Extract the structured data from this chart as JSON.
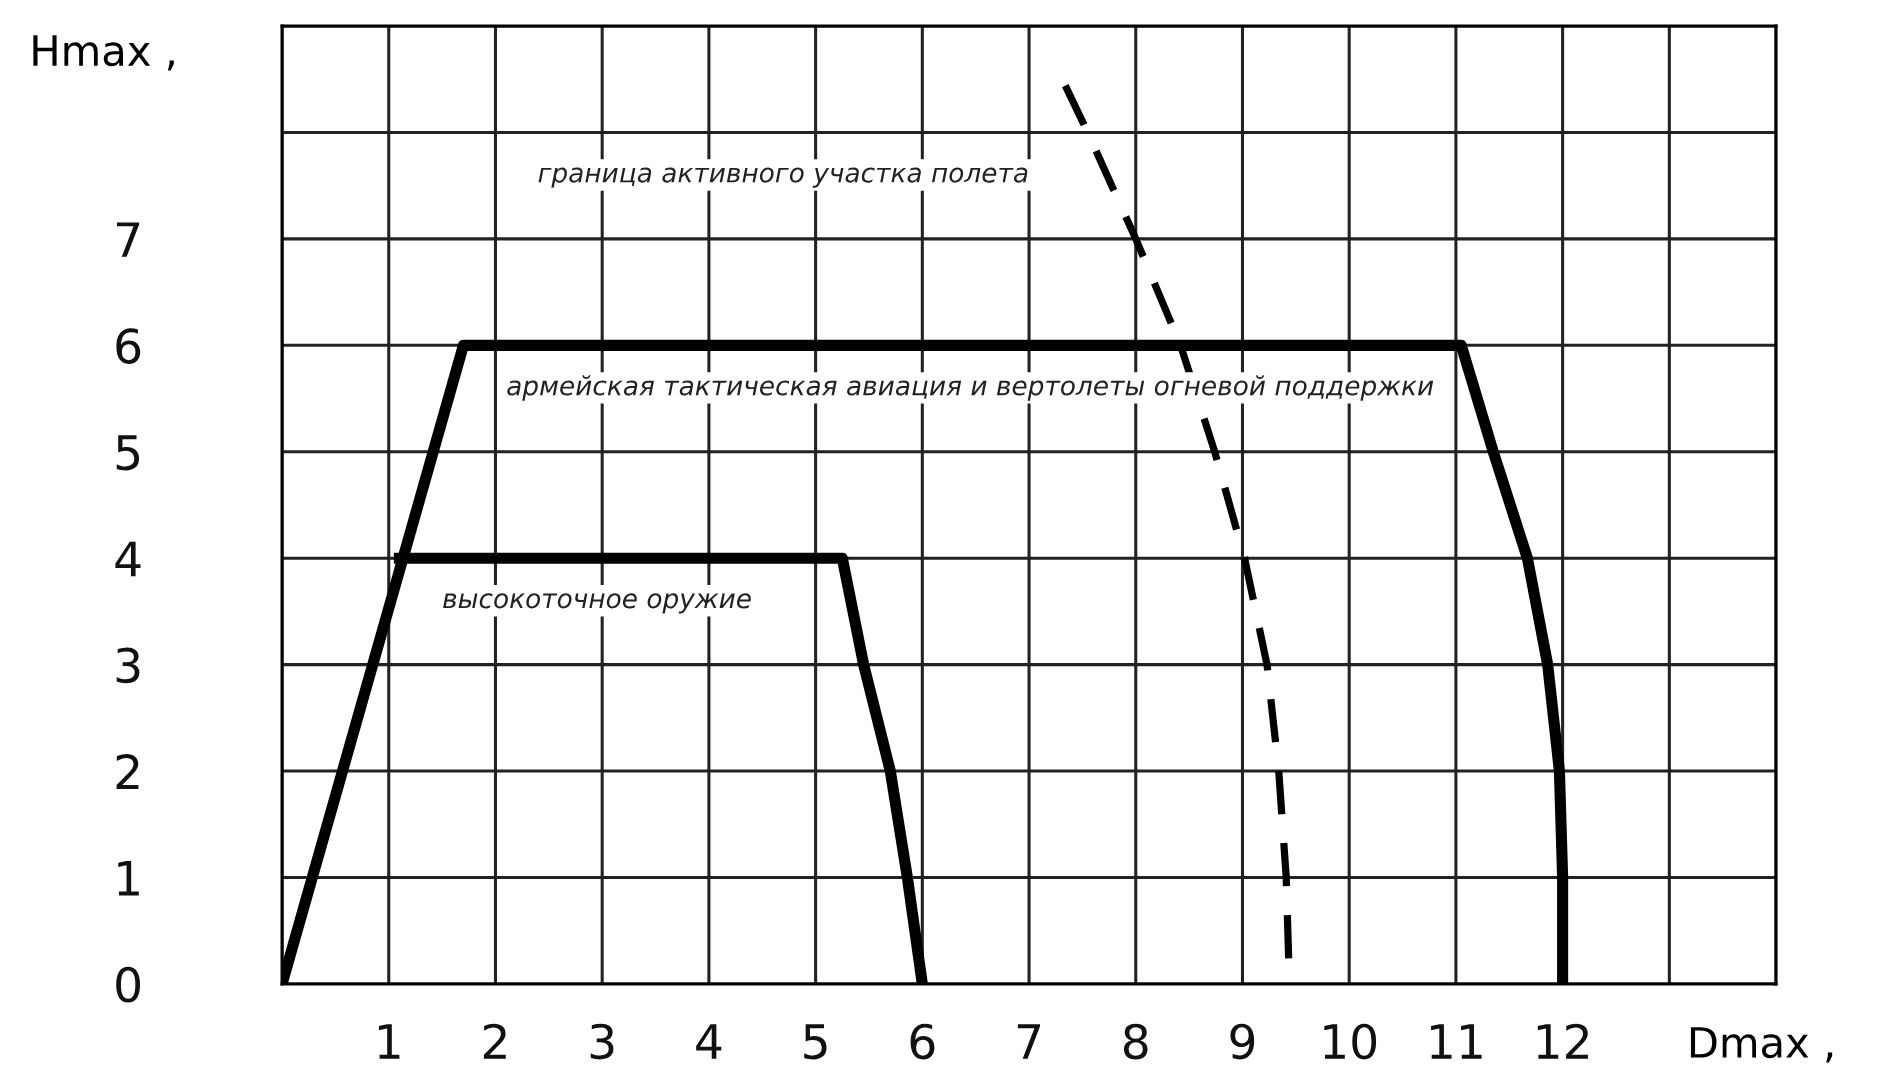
{
  "chart_data": {
    "type": "line",
    "xlabel": "Dmax ,",
    "ylabel": "Hmax ,",
    "xlim": [
      0,
      14
    ],
    "ylim": [
      0,
      9
    ],
    "xticks": [
      {
        "value": 0,
        "label": null
      },
      1,
      2,
      3,
      4,
      5,
      6,
      7,
      8,
      9,
      10,
      11,
      12,
      {
        "value": 13,
        "label": null
      },
      {
        "value": 14,
        "label": null
      }
    ],
    "yticks": [
      0,
      1,
      2,
      3,
      4,
      5,
      6,
      7,
      {
        "value": 8,
        "label": null
      },
      {
        "value": 9,
        "label": null
      }
    ],
    "grid": true,
    "marker": "none",
    "series": [
      {
        "name": "армейская тактическая авиация и вертолеты огневой поддержки",
        "color": "#000000",
        "line_style": "solid",
        "x": [
          0,
          1.7,
          11.05,
          11.35,
          11.67,
          11.86,
          11.97,
          12.0,
          12.0
        ],
        "values": [
          0,
          6,
          6,
          5,
          4,
          3,
          2,
          1,
          0
        ]
      },
      {
        "name": "высокоточное оружие",
        "color": "#000000",
        "line_style": "solid",
        "x": [
          1.1,
          5.25,
          5.45,
          5.7,
          5.86,
          6.0
        ],
        "values": [
          4,
          4,
          3,
          2,
          1,
          0
        ]
      },
      {
        "name": "граница активного участка полета",
        "color": "#000000",
        "line_style": "dashed",
        "x": [
          7.34,
          7.55,
          8.0,
          8.42,
          8.74,
          9.02,
          9.23,
          9.34,
          9.41,
          9.44
        ],
        "values": [
          8.44,
          8,
          7,
          6,
          5,
          4,
          3,
          2,
          1,
          0
        ]
      }
    ]
  }
}
